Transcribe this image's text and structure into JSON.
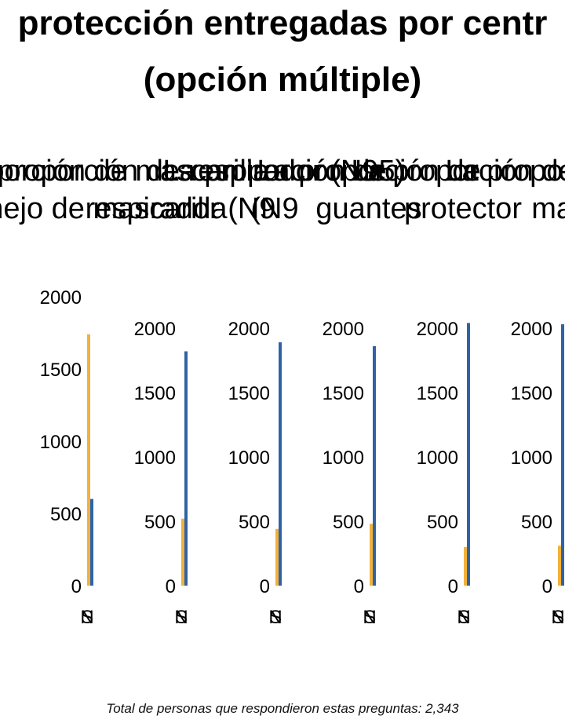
{
  "chart_data": {
    "type": "bar",
    "title_lines": [
      "protección entregadas por centr",
      "(opción múltiple)"
    ],
    "colors": {
      "Sí": "#F2B13C",
      "No": "#2F63A6"
    },
    "panels": [
      {
        "title_lines": [
          "La proporción de mascarilla",
          "manejo de mascarilla"
        ],
        "ylim": [
          0,
          2000
        ],
        "yticks": [
          0,
          500,
          1000,
          1500,
          2000
        ],
        "categories": [
          "Sí",
          "No"
        ],
        "tick_glyphs": [
          "S",
          "N"
        ],
        "values": [
          1740,
          600
        ]
      },
      {
        "title_lines": [
          "La proporción de respirador (N95)",
          "respirador (N9"
        ],
        "ylim": [
          0,
          2000
        ],
        "yticks": [
          0,
          500,
          1000,
          1500,
          2000
        ],
        "categories": [
          "Sí",
          "No"
        ],
        "tick_glyphs": [
          "S",
          "N"
        ],
        "values": [
          520,
          1820
        ]
      },
      {
        "title_lines": [
          "La proporción de",
          "(N9"
        ],
        "ylim": [
          0,
          2000
        ],
        "yticks": [
          0,
          500,
          1000,
          1500,
          2000
        ],
        "categories": [
          "Sí",
          "No"
        ],
        "tick_glyphs": [
          "S",
          "N"
        ],
        "values": [
          440,
          1890
        ]
      },
      {
        "title_lines": [
          "La proporción de",
          "guantes"
        ],
        "ylim": [
          0,
          2000
        ],
        "yticks": [
          0,
          500,
          1000,
          1500,
          2000
        ],
        "categories": [
          "Sí",
          "No"
        ],
        "tick_glyphs": [
          "S",
          "N"
        ],
        "values": [
          480,
          1860
        ]
      },
      {
        "title_lines": [
          "La proporción de",
          "protector"
        ],
        "ylim": [
          0,
          2000
        ],
        "yticks": [
          0,
          500,
          1000,
          1500,
          2000
        ],
        "categories": [
          "Sí",
          "No"
        ],
        "tick_glyphs": [
          "S",
          "N"
        ],
        "values": [
          300,
          2040
        ]
      },
      {
        "title_lines": [
          "La proporción de",
          "mar"
        ],
        "ylim": [
          0,
          2000
        ],
        "yticks": [
          0,
          500,
          1000,
          1500,
          2000
        ],
        "categories": [
          "Sí",
          "No"
        ],
        "tick_glyphs": [
          "S",
          "N"
        ],
        "values": [
          310,
          2030
        ]
      }
    ],
    "footnote": "Total de personas que respondieron estas preguntas: 2,343"
  }
}
